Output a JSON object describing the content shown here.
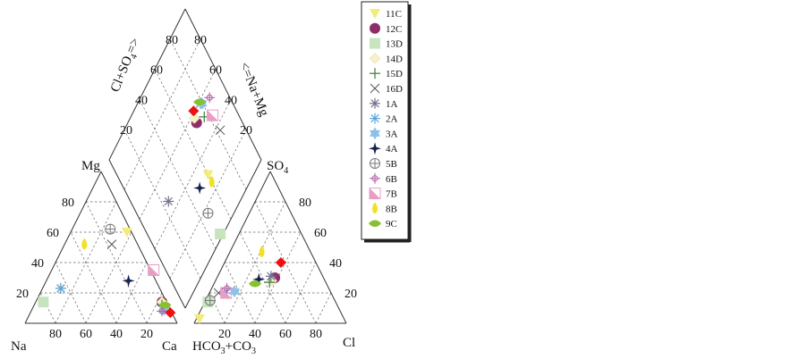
{
  "chart_data": {
    "type": "scatter",
    "subtype": "piper-trilinear-diagram",
    "grid": true,
    "legend_position": "right",
    "labels": {
      "cation_left": "Na",
      "cation_right": "Ca",
      "cation_top": "Mg",
      "anion_left": "HCO",
      "anion_left_sub1": "3",
      "anion_left_mid": "+CO",
      "anion_left_sub2": "3",
      "anion_right": "Cl",
      "anion_top": "SO",
      "anion_top_sub": "4",
      "diamond_left_a": "Cl+SO",
      "diamond_left_sub": "4",
      "diamond_left_b": "=>",
      "diamond_right": "<=Na+Mg"
    },
    "ticks": {
      "cation_bottom": [
        "80",
        "60",
        "40",
        "20"
      ],
      "cation_left": [
        "80",
        "60",
        "40",
        "20"
      ],
      "anion_bottom": [
        "20",
        "40",
        "60",
        "80"
      ],
      "anion_right": [
        "80",
        "60",
        "40",
        "20"
      ],
      "diamond_left": [
        "80",
        "60",
        "40",
        "20"
      ],
      "diamond_right": [
        "80",
        "60",
        "40",
        "20"
      ]
    },
    "series": [
      {
        "name": "11C",
        "marker": "triangle-down",
        "color": "#f3ec7a",
        "cation": {
          "ca": 37,
          "mg": 60
        },
        "anion": {
          "cl": 2,
          "so4": 3
        },
        "diamond": {
          "x": 30,
          "y": 60
        }
      },
      {
        "name": "12C",
        "marker": "circle",
        "color": "#8e2d6a",
        "cation": {
          "ca": 83,
          "mg": 14
        },
        "anion": {
          "cl": 38,
          "so4": 30
        },
        "diamond": {
          "x": 55,
          "y": 70
        }
      },
      {
        "name": "13D",
        "marker": "square",
        "color": "#c8e4bf",
        "cation": {
          "ca": 5,
          "mg": 14
        },
        "anion": {
          "cl": 2,
          "so4": 14
        },
        "diamond": {
          "x": 2,
          "y": 48
        }
      },
      {
        "name": "14D",
        "marker": "diamond",
        "color": "#f5f2c8",
        "cation": {
          "ca": 83,
          "mg": 14
        },
        "anion": {
          "cl": 37,
          "so4": 28
        },
        "diamond": {
          "x": 58,
          "y": 70
        }
      },
      {
        "name": "15D",
        "marker": "plus",
        "color": "#3c7c3c",
        "cation": {
          "ca": 84,
          "mg": 12
        },
        "anion": {
          "cl": 36,
          "so4": 27
        },
        "diamond": {
          "x": 52,
          "y": 77
        }
      },
      {
        "name": "16D",
        "marker": "x",
        "color": "#555555",
        "cation": {
          "ca": 31,
          "mg": 52
        },
        "anion": {
          "cl": 6,
          "so4": 20
        },
        "diamond": {
          "x": 37,
          "y": 83
        }
      },
      {
        "name": "1A",
        "marker": "asterisk",
        "color": "#707090",
        "cation": {
          "ca": 12,
          "mg": 23
        },
        "anion": {
          "cl": 35,
          "so4": 31
        },
        "diamond": {
          "x": 47,
          "y": 25
        }
      },
      {
        "name": "2A",
        "marker": "asterisk",
        "color": "#5aa8d8",
        "cation": {
          "ca": 12,
          "mg": 23
        },
        "anion": {
          "cl": 10,
          "so4": 20
        },
        "diamond": {
          "x": 59,
          "y": 79
        }
      },
      {
        "name": "3A",
        "marker": "star6",
        "color": "#8fc0ea",
        "cation": {
          "ca": 87,
          "mg": 9
        },
        "anion": {
          "cl": 16,
          "so4": 21
        },
        "diamond": {
          "x": 58,
          "y": 80
        }
      },
      {
        "name": "4A",
        "marker": "star4",
        "color": "#14224e",
        "cation": {
          "ca": 54,
          "mg": 28
        },
        "anion": {
          "cl": 28,
          "so4": 29
        },
        "diamond": {
          "x": 31,
          "y": 50
        }
      },
      {
        "name": "5B",
        "marker": "circle-plus",
        "color": "#777777",
        "cation": {
          "ca": 25,
          "mg": 62
        },
        "anion": {
          "cl": 3,
          "so4": 15
        },
        "diamond": {
          "x": 17,
          "y": 47
        }
      },
      {
        "name": "6B",
        "marker": "circle-plus-small",
        "color": "#b05aa0",
        "cation": {
          "ca": 86,
          "mg": 8
        },
        "anion": {
          "cl": 10,
          "so4": 23
        },
        "diamond": {
          "x": 55,
          "y": 87
        }
      },
      {
        "name": "7B",
        "marker": "half-square",
        "color": "#e89ec4",
        "cation": {
          "ca": 67,
          "mg": 35
        },
        "anion": {
          "cl": 11,
          "so4": 20
        },
        "diamond": {
          "x": 47,
          "y": 83
        }
      },
      {
        "name": "8B",
        "marker": "teardrop",
        "color": "#f2e024",
        "cation": {
          "ca": 13,
          "mg": 52
        },
        "anion": {
          "cl": 21,
          "so4": 47
        },
        "diamond": {
          "x": 25,
          "y": 60
        }
      },
      {
        "name": "9C",
        "marker": "leaf",
        "color": "#86c12e",
        "cation": {
          "ca": 86,
          "mg": 12
        },
        "anion": {
          "cl": 27,
          "so4": 26
        },
        "diamond": {
          "x": 60,
          "y": 79
        }
      }
    ],
    "extra_points": [
      {
        "color": "#ee1111",
        "marker": "diamond-filled",
        "cation": {
          "ca": 92,
          "mg": 7
        },
        "anion": {
          "cl": 37,
          "so4": 40
        },
        "diamond": {
          "x": 61,
          "y": 72
        }
      }
    ]
  }
}
